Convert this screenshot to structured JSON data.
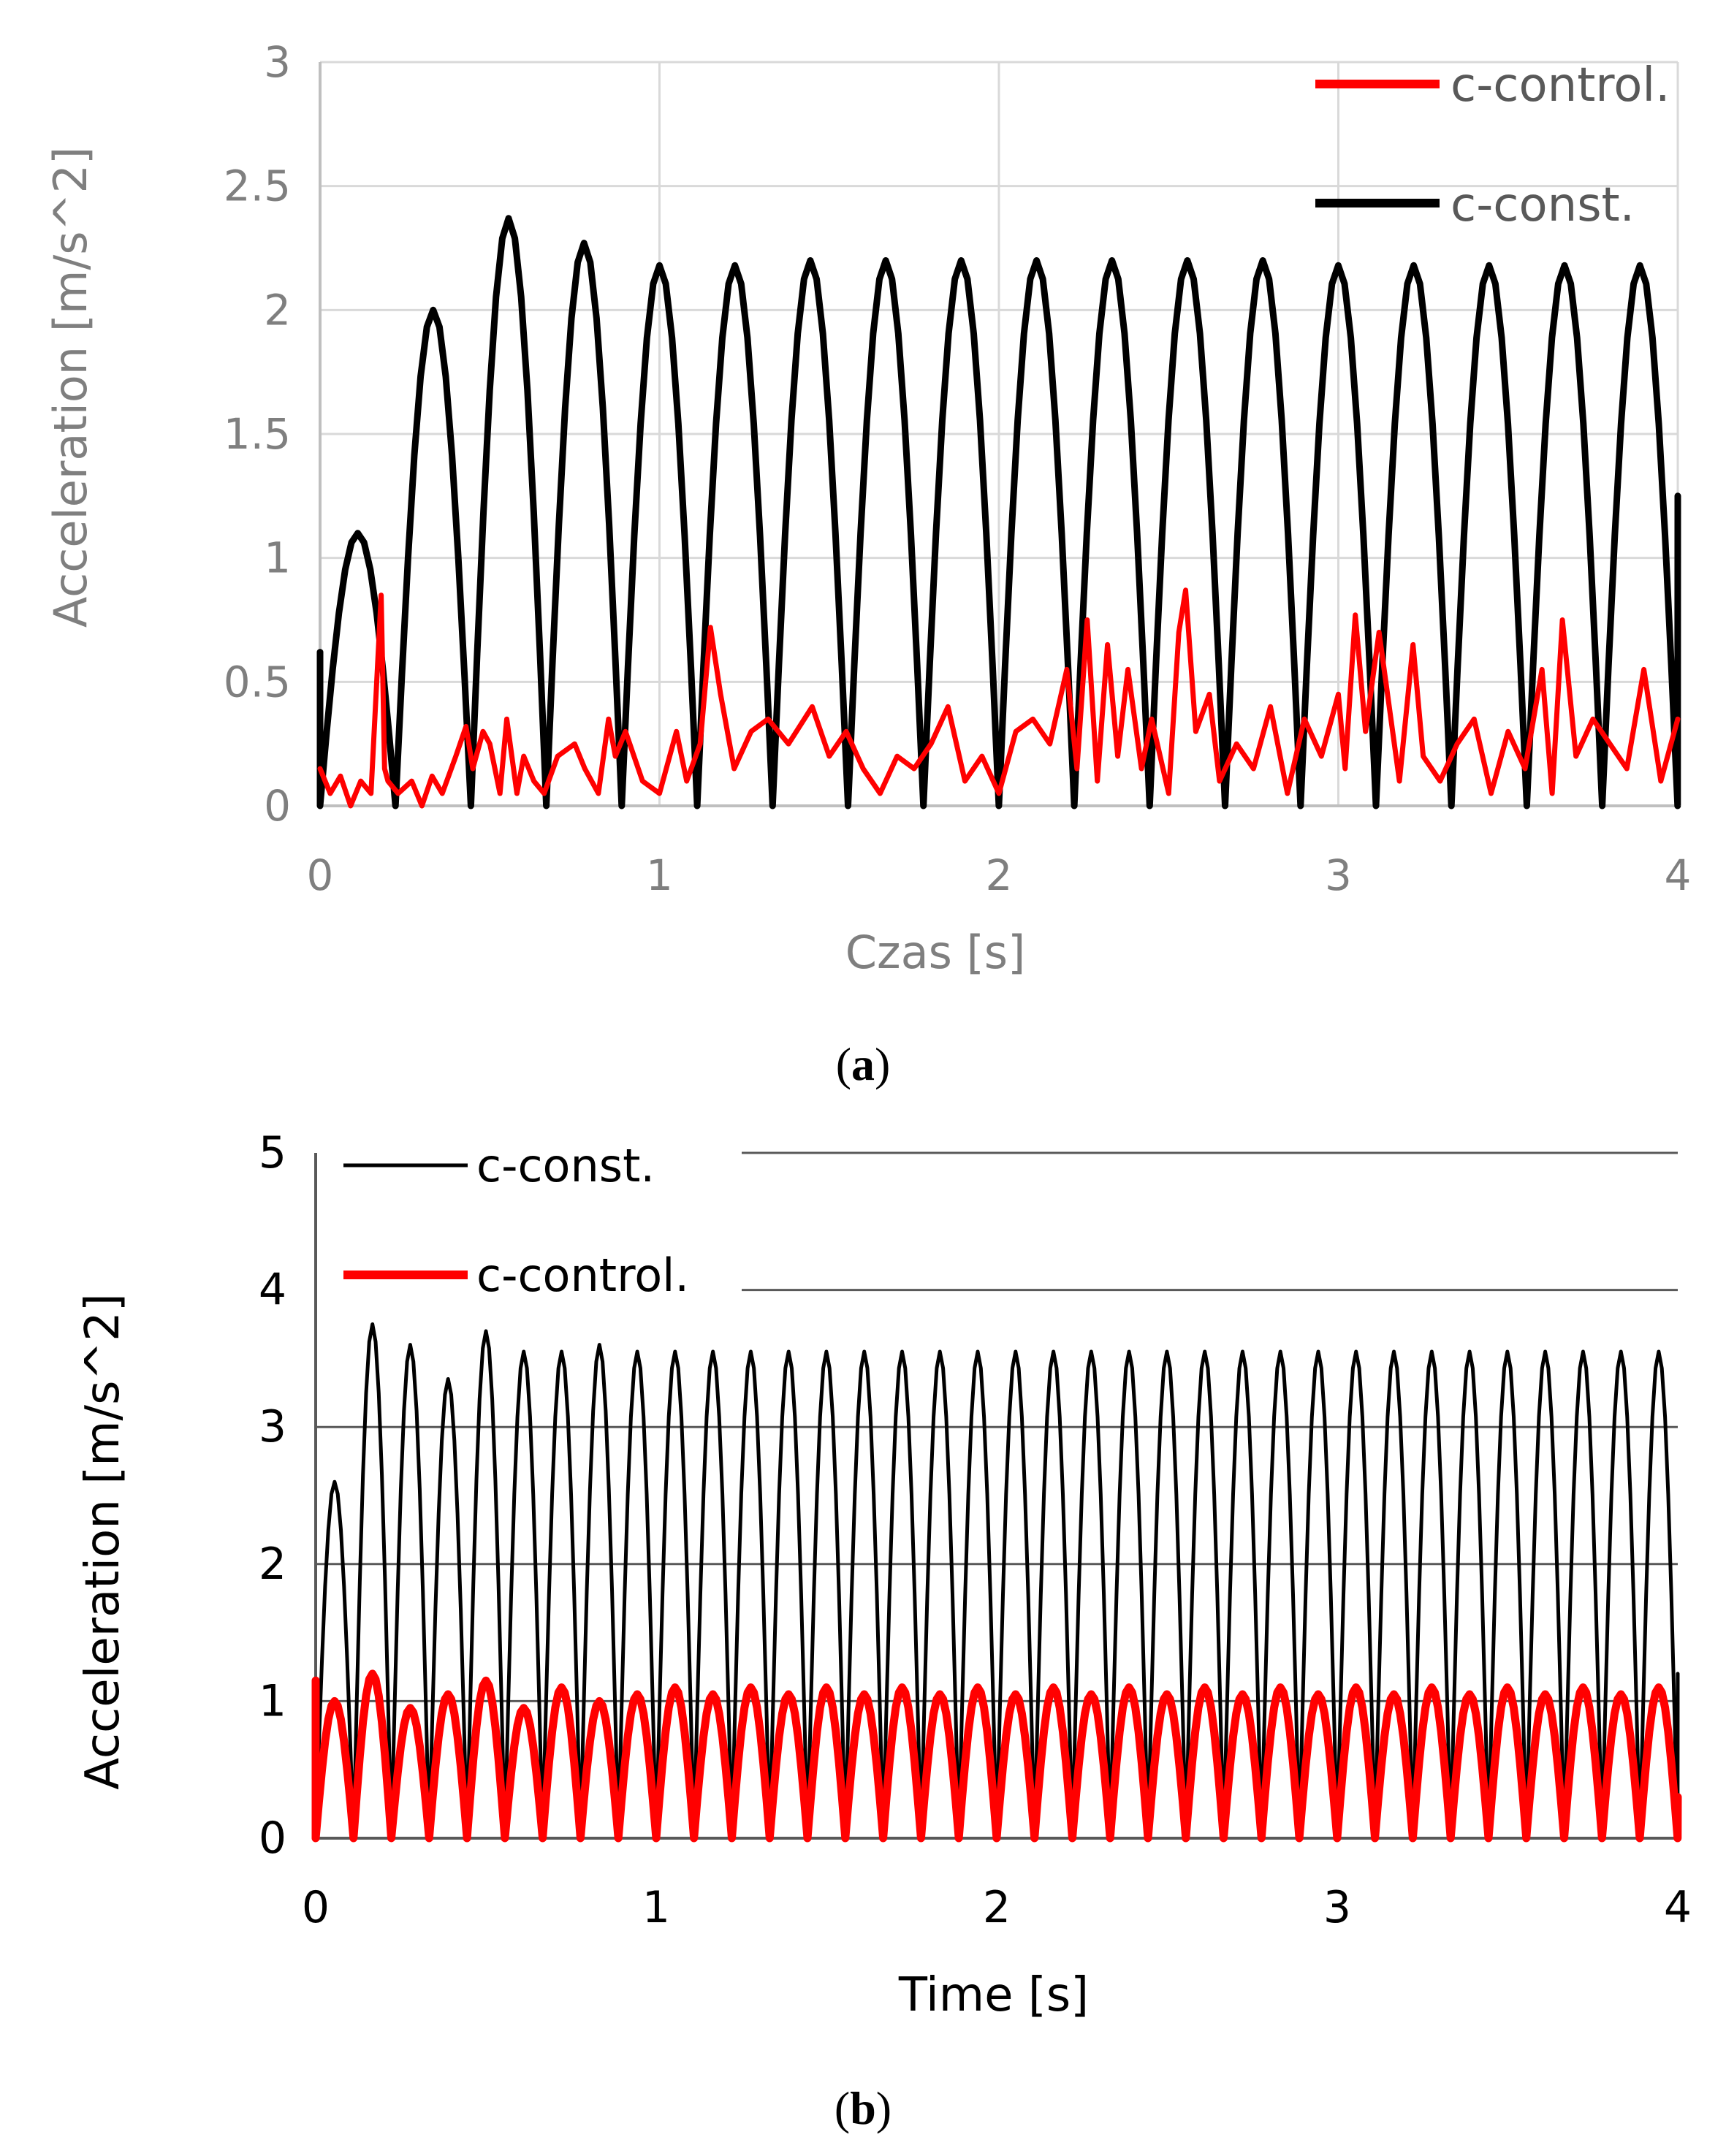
{
  "chart_data": [
    {
      "id": "a",
      "type": "line",
      "caption_prefix": "(",
      "caption_letter": "a",
      "caption_suffix": ")",
      "xlabel": "Czas [s]",
      "ylabel": "Acceleration [m/s^2]",
      "xlim": [
        0,
        4
      ],
      "ylim": [
        0,
        3
      ],
      "xticks": [
        "0",
        "1",
        "2",
        "3",
        "4"
      ],
      "yticks": [
        "0",
        "0.5",
        "1",
        "1.5",
        "2",
        "2.5",
        "3"
      ],
      "grid": true,
      "legend_position": "top-right",
      "colors": {
        "c_control": "#ff0000",
        "c_const": "#000000",
        "grid": "#d9d9d9",
        "axis": "#bfbfbf"
      },
      "series": [
        {
          "name": "c-control.",
          "color": "#ff0000",
          "x": [
            0,
            0.03,
            0.06,
            0.09,
            0.12,
            0.15,
            0.18,
            0.19,
            0.2,
            0.23,
            0.27,
            0.3,
            0.33,
            0.36,
            0.4,
            0.43,
            0.45,
            0.48,
            0.5,
            0.53,
            0.55,
            0.58,
            0.6,
            0.63,
            0.66,
            0.7,
            0.75,
            0.78,
            0.82,
            0.85,
            0.87,
            0.9,
            0.95,
            1.0,
            1.05,
            1.08,
            1.12,
            1.15,
            1.18,
            1.22,
            1.27,
            1.32,
            1.38,
            1.45,
            1.5,
            1.55,
            1.6,
            1.65,
            1.7,
            1.75,
            1.8,
            1.85,
            1.9,
            1.95,
            2.0,
            2.05,
            2.1,
            2.15,
            2.2,
            2.23,
            2.26,
            2.29,
            2.32,
            2.35,
            2.38,
            2.42,
            2.45,
            2.5,
            2.53,
            2.55,
            2.58,
            2.62,
            2.65,
            2.7,
            2.75,
            2.8,
            2.85,
            2.9,
            2.95,
            3.0,
            3.02,
            3.05,
            3.08,
            3.12,
            3.18,
            3.22,
            3.25,
            3.3,
            3.35,
            3.4,
            3.45,
            3.5,
            3.55,
            3.6,
            3.63,
            3.66,
            3.7,
            3.75,
            3.8,
            3.85,
            3.9,
            3.95,
            4.0
          ],
          "y": [
            0.15,
            0.05,
            0.12,
            0.0,
            0.1,
            0.05,
            0.85,
            0.15,
            0.1,
            0.05,
            0.1,
            0.0,
            0.12,
            0.05,
            0.2,
            0.32,
            0.15,
            0.3,
            0.25,
            0.05,
            0.35,
            0.05,
            0.2,
            0.1,
            0.05,
            0.2,
            0.25,
            0.15,
            0.05,
            0.35,
            0.2,
            0.3,
            0.1,
            0.05,
            0.3,
            0.1,
            0.25,
            0.72,
            0.45,
            0.15,
            0.3,
            0.35,
            0.25,
            0.4,
            0.2,
            0.3,
            0.15,
            0.05,
            0.2,
            0.15,
            0.25,
            0.4,
            0.1,
            0.2,
            0.05,
            0.3,
            0.35,
            0.25,
            0.55,
            0.15,
            0.75,
            0.1,
            0.65,
            0.2,
            0.55,
            0.15,
            0.35,
            0.05,
            0.7,
            0.87,
            0.3,
            0.45,
            0.1,
            0.25,
            0.15,
            0.4,
            0.05,
            0.35,
            0.2,
            0.45,
            0.15,
            0.77,
            0.3,
            0.7,
            0.1,
            0.65,
            0.2,
            0.1,
            0.25,
            0.35,
            0.05,
            0.3,
            0.15,
            0.55,
            0.05,
            0.75,
            0.2,
            0.35,
            0.25,
            0.15,
            0.55,
            0.1,
            0.35
          ]
        },
        {
          "name": "c-const.",
          "color": "#000000",
          "period": 0.2222,
          "peaks": [
            1.1,
            2.0,
            2.37,
            2.27,
            2.18,
            2.18,
            2.2,
            2.2,
            2.2,
            2.2,
            2.2,
            2.2,
            2.2,
            2.18,
            2.18,
            2.18,
            2.18,
            2.18
          ],
          "start_value": 0.62,
          "end_value": 1.25
        }
      ]
    },
    {
      "id": "b",
      "type": "line",
      "caption_prefix": "(",
      "caption_letter": "b",
      "caption_suffix": ")",
      "xlabel": "Time [s]",
      "ylabel": "Acceleration [m/s^2]",
      "xlim": [
        0,
        4
      ],
      "ylim": [
        0,
        5
      ],
      "xticks": [
        "0",
        "1",
        "2",
        "3",
        "4"
      ],
      "yticks": [
        "0",
        "1",
        "2",
        "3",
        "4",
        "5"
      ],
      "grid": true,
      "legend_position": "top-left",
      "colors": {
        "c_const": "#000000",
        "c_control": "#ff0000",
        "grid": "#595959"
      },
      "series": [
        {
          "name": "c-const.",
          "color": "#000000",
          "period": 0.1111,
          "peaks": [
            2.6,
            3.75,
            3.6,
            3.35,
            3.7,
            3.55,
            3.55,
            3.6,
            3.55,
            3.55,
            3.55,
            3.55,
            3.55,
            3.55,
            3.55,
            3.55,
            3.55,
            3.55,
            3.55,
            3.55,
            3.55,
            3.55,
            3.55,
            3.55,
            3.55,
            3.55,
            3.55,
            3.55,
            3.55,
            3.55,
            3.55,
            3.55,
            3.55,
            3.55,
            3.55,
            3.55
          ],
          "start_value": 1.1,
          "end_value": 1.2
        },
        {
          "name": "c-control.",
          "color": "#ff0000",
          "period": 0.1111,
          "peaks": [
            1.0,
            1.2,
            0.95,
            1.05,
            1.15,
            0.95,
            1.1,
            1.0,
            1.05,
            1.1,
            1.05,
            1.1,
            1.05,
            1.1,
            1.05,
            1.1,
            1.05,
            1.1,
            1.05,
            1.1,
            1.05,
            1.1,
            1.05,
            1.1,
            1.05,
            1.1,
            1.05,
            1.1,
            1.05,
            1.1,
            1.05,
            1.1,
            1.05,
            1.1,
            1.05,
            1.1
          ],
          "start_value": 1.15,
          "end_value": 0.3
        }
      ]
    }
  ]
}
